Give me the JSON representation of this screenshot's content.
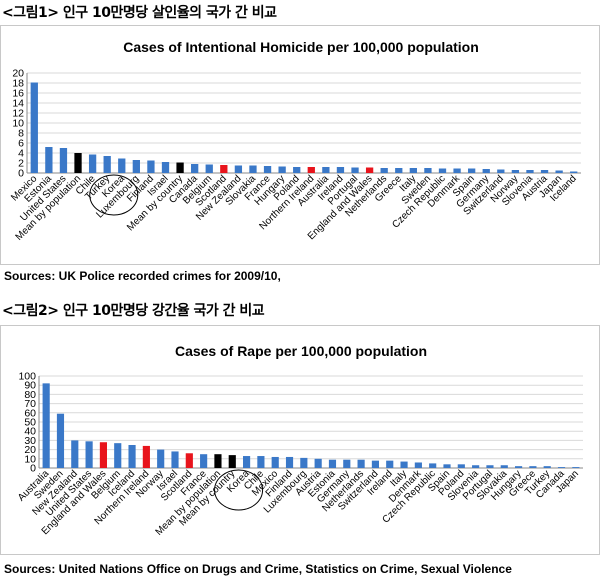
{
  "figure1": {
    "heading": "<그림1> 인구 10만명당 살인율의 국가 간 비교",
    "source": "Sources: UK Police recorded crimes for 2009/10,",
    "chart_data": {
      "type": "bar",
      "title": "Cases of Intentional Homicide per 100,000 population",
      "xlabel": "",
      "ylabel": "",
      "ylim": [
        0,
        20
      ],
      "yticks": [
        0,
        2,
        4,
        6,
        8,
        10,
        12,
        14,
        16,
        18,
        20
      ],
      "grid": true,
      "categories": [
        "Mexico",
        "Estonia",
        "United States",
        "Mean by population",
        "Chile",
        "Turkey",
        "Korea",
        "Luxembourg",
        "Finland",
        "Israel",
        "Mean by country",
        "Canada",
        "Belgium",
        "Scotland",
        "New Zealand",
        "Slovakia",
        "France",
        "Hungary",
        "Poland",
        "Northern Ireland",
        "Australia",
        "Ireland",
        "Portugal",
        "England and Wales",
        "Netherlands",
        "Greece",
        "Italy",
        "Sweden",
        "Czech Republic",
        "Denmark",
        "Spain",
        "Germany",
        "Switzerland",
        "Norway",
        "Slovenia",
        "Austria",
        "Japan",
        "Iceland"
      ],
      "values": [
        18.1,
        5.2,
        5.0,
        4.0,
        3.7,
        3.4,
        2.9,
        2.6,
        2.5,
        2.2,
        2.1,
        1.8,
        1.7,
        1.6,
        1.5,
        1.5,
        1.4,
        1.3,
        1.2,
        1.2,
        1.2,
        1.2,
        1.1,
        1.1,
        1.0,
        1.0,
        1.0,
        1.0,
        0.9,
        0.9,
        0.9,
        0.8,
        0.7,
        0.6,
        0.6,
        0.6,
        0.5,
        0.3
      ],
      "bar_colors": [
        "#3a78c8",
        "#3a78c8",
        "#3a78c8",
        "#000000",
        "#3a78c8",
        "#3a78c8",
        "#3a78c8",
        "#3a78c8",
        "#3a78c8",
        "#3a78c8",
        "#000000",
        "#3a78c8",
        "#3a78c8",
        "#e8141c",
        "#3a78c8",
        "#3a78c8",
        "#3a78c8",
        "#3a78c8",
        "#3a78c8",
        "#e8141c",
        "#3a78c8",
        "#3a78c8",
        "#3a78c8",
        "#e8141c",
        "#3a78c8",
        "#3a78c8",
        "#3a78c8",
        "#3a78c8",
        "#3a78c8",
        "#3a78c8",
        "#3a78c8",
        "#3a78c8",
        "#3a78c8",
        "#3a78c8",
        "#3a78c8",
        "#3a78c8",
        "#3a78c8",
        "#3a78c8"
      ],
      "highlight_circle_category": "Korea"
    }
  },
  "figure2": {
    "heading": "<그림2> 인구 10만명당 강간율 국가 간 비교",
    "source": "Sources: United Nations Office on Drugs and Crime, Statistics on Crime, Sexual Violence",
    "chart_data": {
      "type": "bar",
      "title": "Cases of Rape per 100,000 population",
      "xlabel": "",
      "ylabel": "",
      "ylim": [
        0,
        100
      ],
      "yticks": [
        0,
        10,
        20,
        30,
        40,
        50,
        60,
        70,
        80,
        90,
        100
      ],
      "grid": true,
      "categories": [
        "Australia",
        "Sweden",
        "New Zealand",
        "United States",
        "England and Wales",
        "Belgium",
        "Iceland",
        "Northern Ireland",
        "Norway",
        "Israel",
        "Scotland",
        "France",
        "Mean by population",
        "Mean by country",
        "Korea",
        "Chile",
        "Mexico",
        "Finland",
        "Luxembourg",
        "Austria",
        "Estonia",
        "Germany",
        "Netherlands",
        "Switzerland",
        "Ireland",
        "Italy",
        "Denmark",
        "Czech Republic",
        "Spain",
        "Poland",
        "Slovenia",
        "Portugal",
        "Slovakia",
        "Hungary",
        "Greece",
        "Turkey",
        "Canada",
        "Japan"
      ],
      "values": [
        92,
        59,
        30,
        29,
        28,
        27,
        25,
        24,
        20,
        18,
        16,
        15,
        15,
        14,
        13,
        13,
        12,
        12,
        11,
        10,
        9,
        9,
        9,
        8,
        8,
        7,
        6,
        5,
        4,
        4,
        3,
        3,
        3,
        2,
        2,
        2,
        1,
        1
      ],
      "bar_colors": [
        "#3a78c8",
        "#3a78c8",
        "#3a78c8",
        "#3a78c8",
        "#e8141c",
        "#3a78c8",
        "#3a78c8",
        "#e8141c",
        "#3a78c8",
        "#3a78c8",
        "#e8141c",
        "#3a78c8",
        "#000000",
        "#000000",
        "#3a78c8",
        "#3a78c8",
        "#3a78c8",
        "#3a78c8",
        "#3a78c8",
        "#3a78c8",
        "#3a78c8",
        "#3a78c8",
        "#3a78c8",
        "#3a78c8",
        "#3a78c8",
        "#3a78c8",
        "#3a78c8",
        "#3a78c8",
        "#3a78c8",
        "#3a78c8",
        "#3a78c8",
        "#3a78c8",
        "#3a78c8",
        "#3a78c8",
        "#3a78c8",
        "#3a78c8",
        "#3a78c8",
        "#3a78c8"
      ],
      "highlight_circle_category": "Korea"
    }
  }
}
